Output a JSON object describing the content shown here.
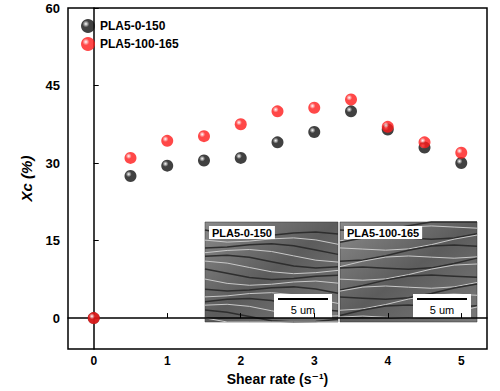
{
  "chart_data": {
    "type": "scatter",
    "x_label": "Shear rate (s⁻¹)",
    "y_label": "Xc (%)",
    "x": [
      0,
      0.5,
      1,
      1.5,
      2,
      2.5,
      3,
      3.5,
      4,
      4.5,
      5
    ],
    "series": [
      {
        "name": "PLA5-0-150",
        "color": "#111111",
        "marker": "circle",
        "values": [
          0,
          27.5,
          29.5,
          30.5,
          31,
          34,
          36,
          40,
          36.5,
          33,
          30
        ]
      },
      {
        "name": "PLA5-100-165",
        "color": "#ff1a1a",
        "marker": "circle",
        "values": [
          0,
          31,
          34.3,
          35.2,
          37.5,
          40,
          40.7,
          42.3,
          37,
          34,
          32
        ]
      }
    ],
    "xlim": [
      -0.35,
      5.35
    ],
    "xticks": [
      0,
      1,
      2,
      3,
      4,
      5
    ],
    "ylim": [
      -6,
      60
    ],
    "yticks": [
      0,
      15,
      30,
      45,
      60
    ],
    "grid": false,
    "legend": "upper left",
    "annotations": [
      {
        "text": "PLA5-0-150",
        "scale_bar": "5 um"
      },
      {
        "text": "PLA5-100-165",
        "scale_bar": "5 um"
      }
    ]
  }
}
